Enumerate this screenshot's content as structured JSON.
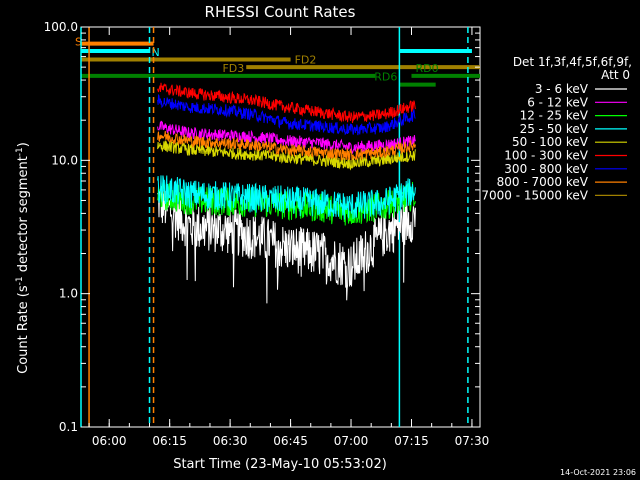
{
  "chart_data": {
    "type": "line",
    "title": "RHESSI Count Rates",
    "xlabel": "Start Time (23-May-10 05:53:02)",
    "ylabel_main": "Count Rate (s",
    "ylabel_sup": "-1",
    "ylabel_tail": " detector segment",
    "ylabel_sup2": "-1",
    "ylabel_end": ")",
    "y_scale": "log",
    "ylim": [
      0.1,
      100.0
    ],
    "xlim": [
      "05:53",
      "07:32"
    ],
    "x_ticks": [
      "06:00",
      "06:15",
      "06:30",
      "06:45",
      "07:00",
      "07:15",
      "07:30"
    ],
    "y_ticks": [
      "0.1",
      "1.0",
      "10.0",
      "100.0"
    ],
    "data_window": [
      "06:12",
      "07:16"
    ],
    "timestamp": "14-Oct-2021 23:06",
    "legend_header": [
      "Det 1f,3f,4f,5f,6f,9f,",
      "Att 0"
    ],
    "legend_position": "right",
    "series": [
      {
        "name": "3 - 6 keV",
        "color": "#ffffff",
        "values": [
          5.0,
          3.2,
          3.0,
          2.7,
          2.2,
          2.0,
          1.6,
          2.8,
          3.8
        ]
      },
      {
        "name": "6 - 12 keV",
        "color": "#ff00ff",
        "values": [
          18,
          16,
          15.5,
          15,
          14,
          13.5,
          12.5,
          13,
          14
        ]
      },
      {
        "name": "12 - 25 keV",
        "color": "#00ff00",
        "values": [
          5.5,
          5.0,
          4.9,
          4.8,
          4.6,
          4.4,
          4.1,
          4.5,
          5.5
        ]
      },
      {
        "name": "25 - 50 keV",
        "color": "#00ffff",
        "values": [
          6.2,
          5.6,
          5.4,
          5.2,
          5.0,
          4.8,
          4.5,
          4.8,
          6.0
        ]
      },
      {
        "name": "50 - 100 keV",
        "color": "#d8d800",
        "values": [
          13,
          12,
          11.5,
          11,
          10.5,
          10,
          9.5,
          10,
          11
        ]
      },
      {
        "name": "100 - 300 keV",
        "color": "#ff0000",
        "values": [
          35,
          32,
          30,
          28,
          25,
          23,
          21,
          22,
          26
        ]
      },
      {
        "name": "300 - 800 keV",
        "color": "#0000ff",
        "values": [
          28,
          25,
          24,
          22,
          19,
          18,
          17,
          17.5,
          22
        ]
      },
      {
        "name": "800 - 7000 keV",
        "color": "#ff8000",
        "values": [
          15.5,
          14,
          13.5,
          13,
          12,
          11.5,
          11,
          11.5,
          13
        ]
      },
      {
        "name": "7000 - 15000 keV",
        "color": "#a08000",
        "values": []
      }
    ],
    "series_times": [
      "06:12",
      "06:20",
      "06:28",
      "06:36",
      "06:44",
      "06:52",
      "07:00",
      "07:08",
      "07:16"
    ],
    "flags": [
      {
        "label": "S",
        "color": "#ff8000",
        "start": "05:53",
        "end": "06:11",
        "level": 75
      },
      {
        "label": "N",
        "color": "#00ffff",
        "start": "05:53",
        "end": "06:10",
        "level": 66
      },
      {
        "label": "",
        "color": "#00ffff",
        "start": "07:12",
        "end": "07:30",
        "level": 66
      },
      {
        "label": "FD2",
        "color": "#a08000",
        "start": "05:53",
        "end": "06:45",
        "level": 57
      },
      {
        "label": "FD3",
        "color": "#a08000",
        "start": "06:34",
        "end": "07:32",
        "level": 50
      },
      {
        "label": "RD0",
        "color": "#008000",
        "start": "07:15",
        "end": "07:32",
        "level": 43
      },
      {
        "label": "",
        "color": "#008000",
        "start": "05:53",
        "end": "07:06",
        "level": 43
      },
      {
        "label": "RD6",
        "color": "#008000",
        "start": "07:12",
        "end": "07:21",
        "level": 37
      }
    ],
    "vlines": [
      {
        "time": "05:55",
        "color": "#ff8000",
        "style": "solid"
      },
      {
        "time": "05:53",
        "color": "#00ffff",
        "style": "solid"
      },
      {
        "time": "06:10",
        "color": "#00ffff",
        "style": "dashed"
      },
      {
        "time": "06:11",
        "color": "#ff8000",
        "style": "dashed"
      },
      {
        "time": "07:12",
        "color": "#00ffff",
        "style": "solid"
      },
      {
        "time": "07:29",
        "color": "#00ffff",
        "style": "dashed"
      }
    ]
  }
}
